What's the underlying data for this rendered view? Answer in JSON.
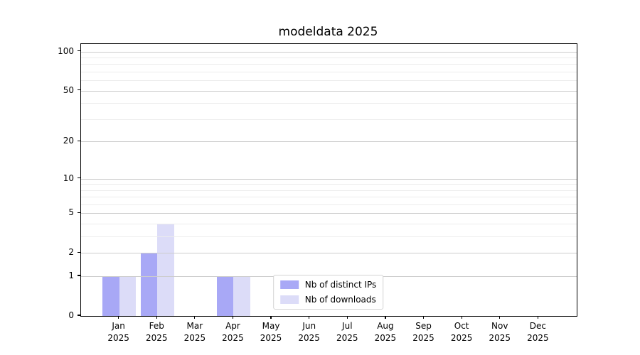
{
  "chart_data": {
    "type": "bar",
    "title": "modeldata 2025",
    "categories": [
      "Jan",
      "Feb",
      "Mar",
      "Apr",
      "May",
      "Jun",
      "Jul",
      "Aug",
      "Sep",
      "Oct",
      "Nov",
      "Dec"
    ],
    "year_label": "2025",
    "series": [
      {
        "name": "Nb of distinct IPs",
        "color": "#a8a8f6",
        "values": [
          1,
          2,
          0,
          1,
          0,
          0,
          0,
          0,
          0,
          0,
          0,
          0
        ]
      },
      {
        "name": "Nb of downloads",
        "color": "#dcdcf8",
        "values": [
          1,
          4,
          0,
          1,
          0,
          0,
          0,
          0,
          0,
          0,
          0,
          0
        ]
      }
    ],
    "xlabel": "",
    "ylabel": "",
    "yscale": "log1p",
    "ylim": [
      0,
      114.3
    ],
    "y_major_ticks": [
      0,
      1,
      2,
      5,
      10,
      20,
      50,
      100
    ],
    "y_minor_gridlines": [
      3,
      4,
      6,
      7,
      8,
      9,
      30,
      40,
      60,
      70,
      80,
      90
    ],
    "grid": true,
    "legend": {
      "position": "lower center",
      "entries": [
        "Nb of distinct IPs",
        "Nb of downloads"
      ]
    },
    "colors": {
      "major_grid": "#cccccc",
      "minor_grid": "#ececec",
      "axis": "#000000",
      "background": "#ffffff"
    }
  }
}
